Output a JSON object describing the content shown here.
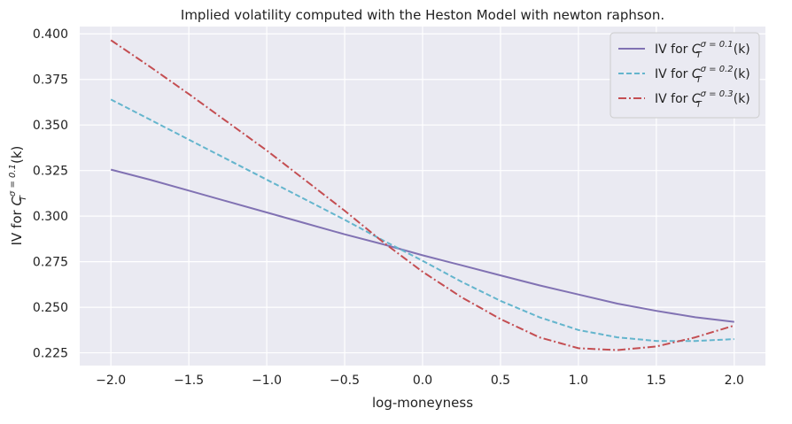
{
  "chart_data": {
    "type": "line",
    "title": "Implied volatility computed with the Heston Model with newton raphson.",
    "xlabel": "log-moneyness",
    "ylabel": {
      "prefix": "IV for ",
      "sup": "σ = 0.1",
      "sub": "T",
      "suffix": "(k)"
    },
    "xlim": [
      -2.2,
      2.2
    ],
    "ylim": [
      0.218,
      0.404
    ],
    "xticks": [
      -2.0,
      -1.5,
      -1.0,
      -0.5,
      0.0,
      0.5,
      1.0,
      1.5,
      2.0
    ],
    "xtick_labels": [
      "−2.0",
      "−1.5",
      "−1.0",
      "−0.5",
      "0.0",
      "0.5",
      "1.0",
      "1.5",
      "2.0"
    ],
    "yticks": [
      0.225,
      0.25,
      0.275,
      0.3,
      0.325,
      0.35,
      0.375,
      0.4
    ],
    "ytick_labels": [
      "0.225",
      "0.250",
      "0.275",
      "0.300",
      "0.325",
      "0.350",
      "0.375",
      "0.400"
    ],
    "grid": true,
    "legend_position": "top-right",
    "background": "#eaeaf2",
    "series": [
      {
        "name": {
          "prefix": "IV for ",
          "sup": "σ = 0.1",
          "sub": "T",
          "suffix": "(k)"
        },
        "color": "#8172b3",
        "dash": "solid",
        "x": [
          -2.0,
          -1.75,
          -1.5,
          -1.25,
          -1.0,
          -0.75,
          -0.5,
          -0.25,
          0.0,
          0.25,
          0.5,
          0.75,
          1.0,
          1.25,
          1.5,
          1.75,
          2.0
        ],
        "y": [
          0.3255,
          0.32,
          0.314,
          0.308,
          0.302,
          0.296,
          0.29,
          0.2845,
          0.2785,
          0.273,
          0.2675,
          0.262,
          0.257,
          0.252,
          0.248,
          0.2445,
          0.242
        ]
      },
      {
        "name": {
          "prefix": "IV for ",
          "sup": "σ = 0.2",
          "sub": "T",
          "suffix": "(k)"
        },
        "color": "#64b5cd",
        "dash": "dashed",
        "x": [
          -2.0,
          -1.75,
          -1.5,
          -1.25,
          -1.0,
          -0.75,
          -0.5,
          -0.25,
          0.0,
          0.25,
          0.5,
          0.75,
          1.0,
          1.25,
          1.5,
          1.75,
          2.0
        ],
        "y": [
          0.364,
          0.353,
          0.342,
          0.331,
          0.32,
          0.309,
          0.298,
          0.2865,
          0.2755,
          0.264,
          0.2535,
          0.2445,
          0.2375,
          0.2335,
          0.2315,
          0.2315,
          0.2325
        ]
      },
      {
        "name": {
          "prefix": "IV for ",
          "sup": "σ = 0.3",
          "sub": "T",
          "suffix": "(k)"
        },
        "color": "#c44e52",
        "dash": "dashdot",
        "x": [
          -2.0,
          -1.75,
          -1.5,
          -1.25,
          -1.0,
          -0.75,
          -0.5,
          -0.25,
          0.0,
          0.25,
          0.5,
          0.75,
          1.0,
          1.25,
          1.5,
          1.75,
          2.0
        ],
        "y": [
          0.3965,
          0.382,
          0.367,
          0.3515,
          0.336,
          0.3195,
          0.303,
          0.2855,
          0.2695,
          0.2555,
          0.2435,
          0.2335,
          0.2275,
          0.2265,
          0.2285,
          0.2335,
          0.24
        ]
      }
    ]
  }
}
